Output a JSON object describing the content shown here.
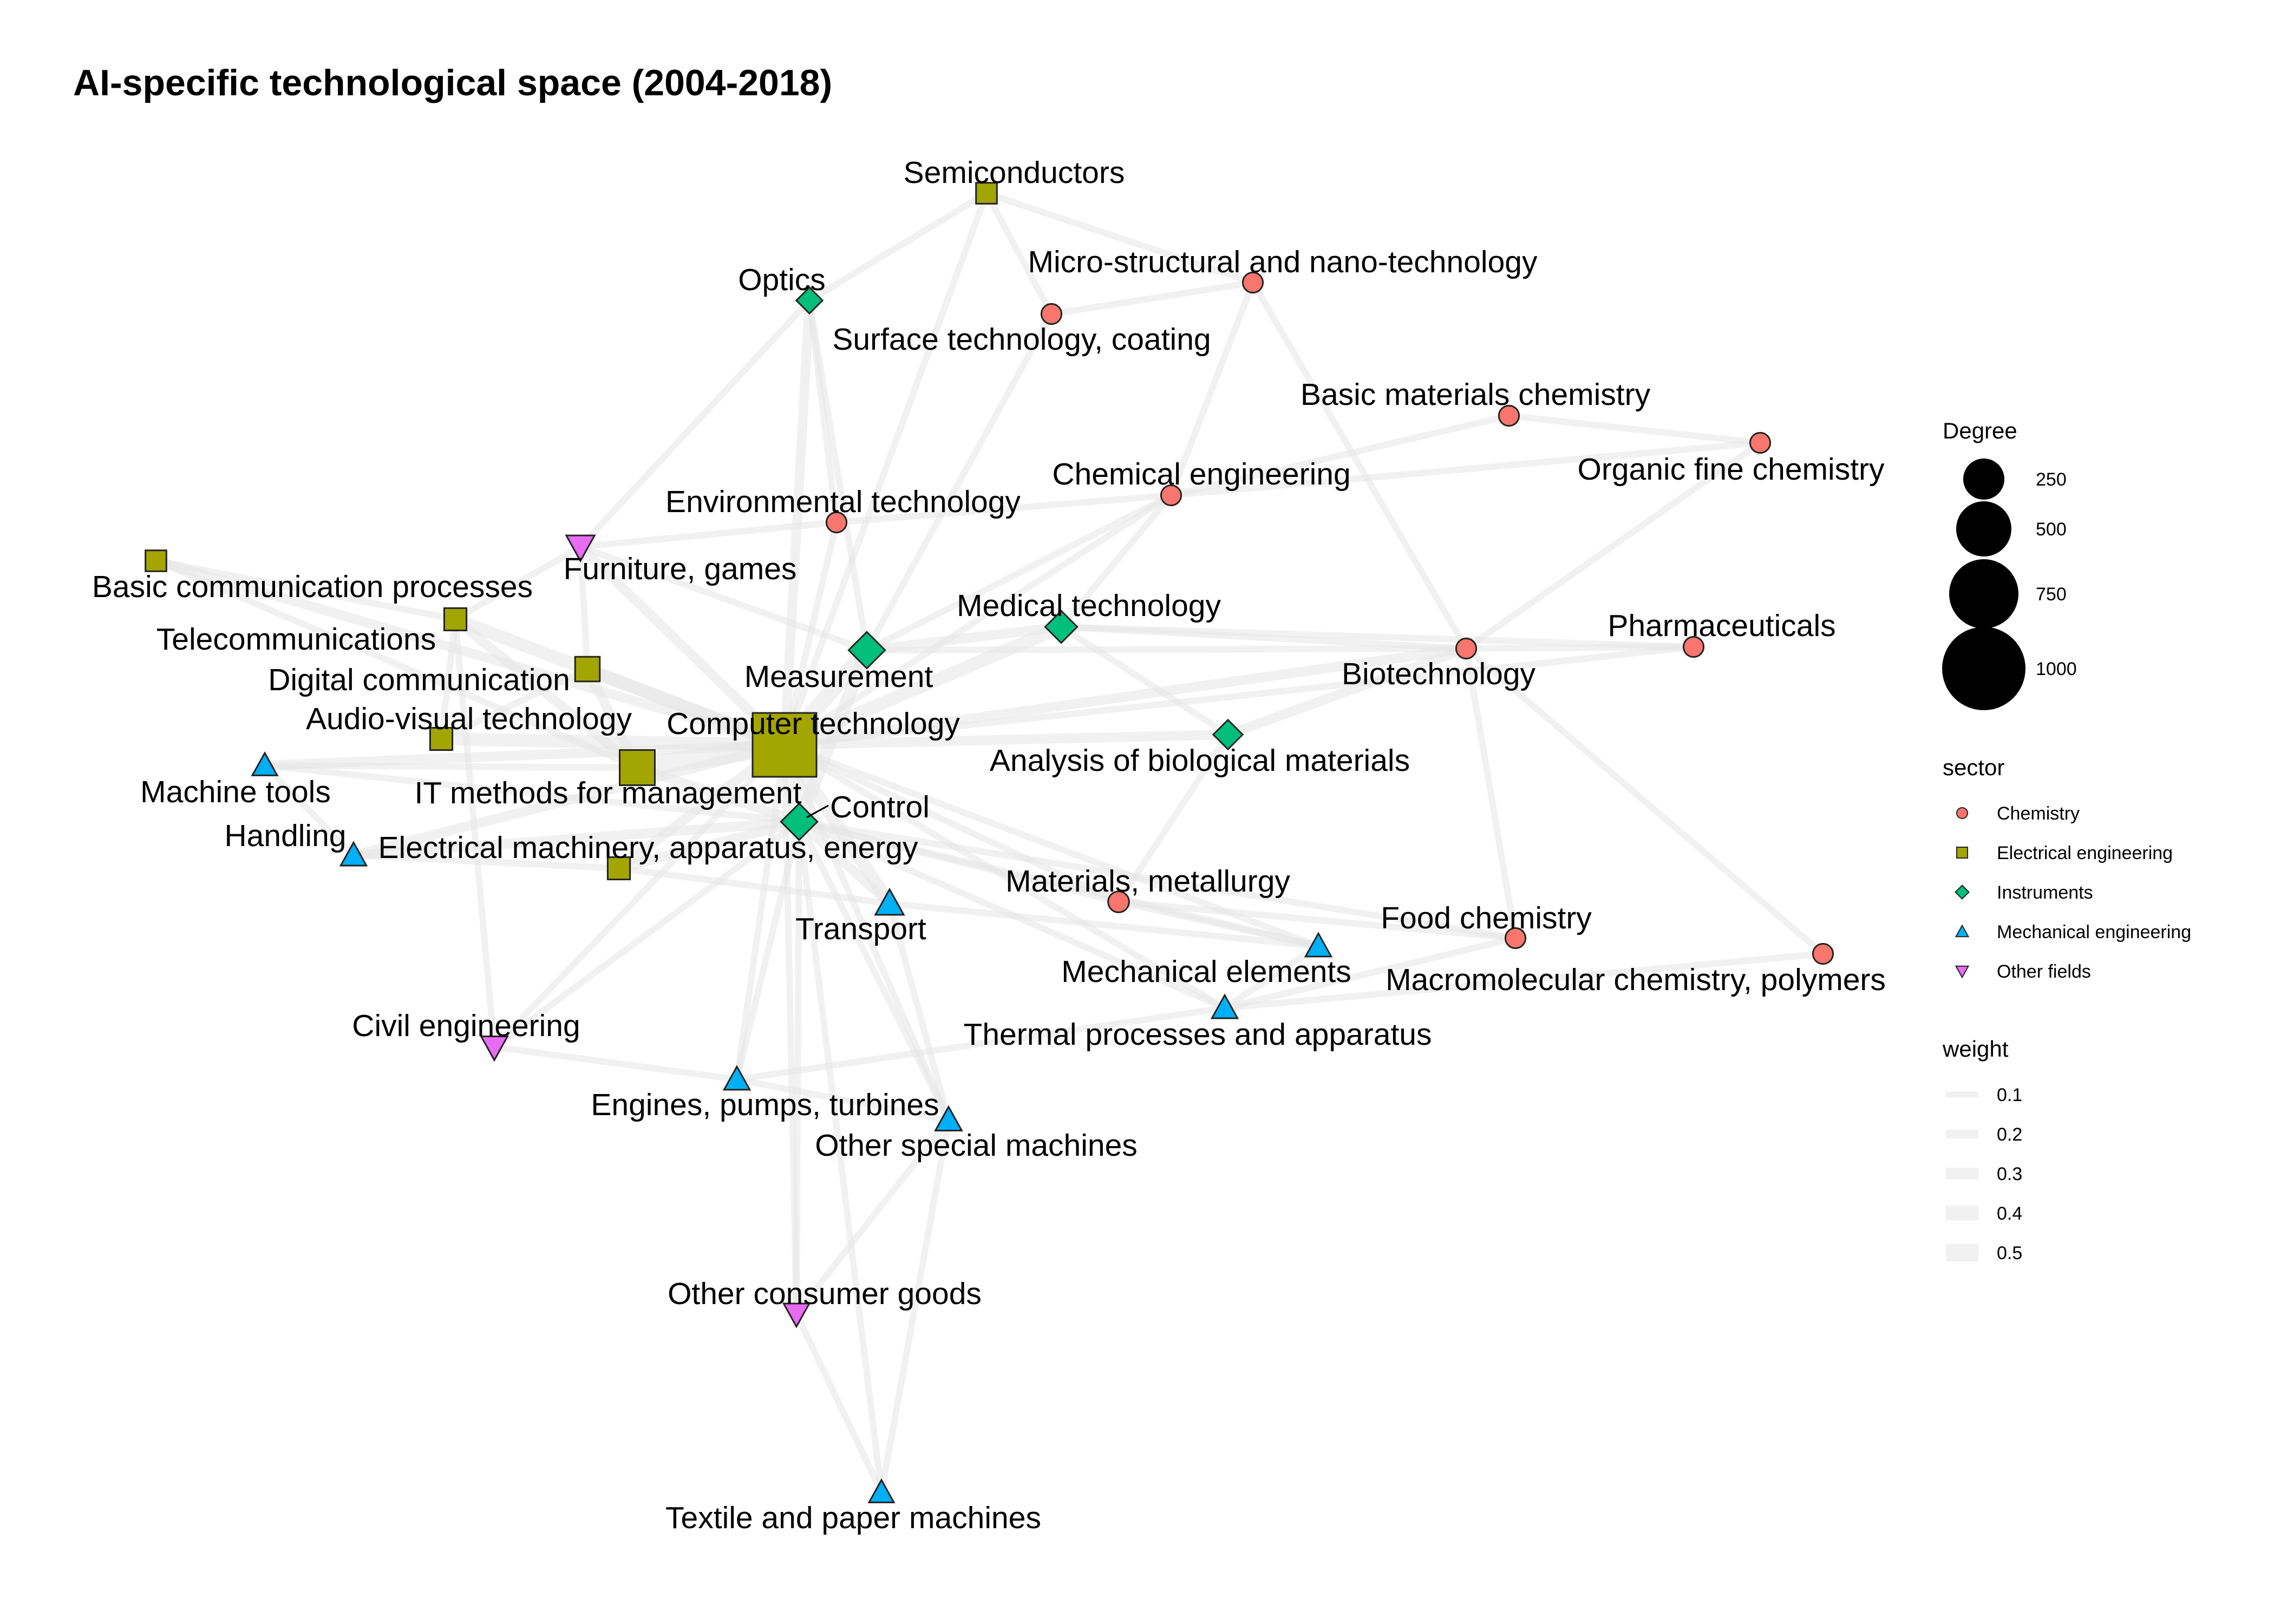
{
  "title": "AI-specific technological space (2004-2018)",
  "sector_colors": {
    "Chemistry": "#F8766D",
    "Electrical engineering": "#A3A500",
    "Instruments": "#00BF7D",
    "Mechanical engineering": "#00B0F6",
    "Other fields": "#E76BF3"
  },
  "sector_shapes": {
    "Chemistry": "circle",
    "Electrical engineering": "square",
    "Instruments": "diamond",
    "Mechanical engineering": "triangle-up",
    "Other fields": "triangle-down"
  },
  "edge_color": "#e6e6e6",
  "nodes": [
    {
      "id": "semiconductors",
      "label": "Semiconductors",
      "sector": "Electrical engineering",
      "degree": 30
    },
    {
      "id": "optics",
      "label": "Optics",
      "sector": "Instruments",
      "degree": 30
    },
    {
      "id": "micro_nano",
      "label": "Micro-structural and nano-technology",
      "sector": "Chemistry",
      "degree": 25
    },
    {
      "id": "surface",
      "label": "Surface technology, coating",
      "sector": "Chemistry",
      "degree": 25
    },
    {
      "id": "basic_materials",
      "label": "Basic materials chemistry",
      "sector": "Chemistry",
      "degree": 25
    },
    {
      "id": "organic_fine",
      "label": "Organic fine chemistry",
      "sector": "Chemistry",
      "degree": 25
    },
    {
      "id": "chemical_eng",
      "label": "Chemical engineering",
      "sector": "Chemistry",
      "degree": 25
    },
    {
      "id": "environmental",
      "label": "Environmental technology",
      "sector": "Chemistry",
      "degree": 25
    },
    {
      "id": "basic_comm",
      "label": "Basic communication processes",
      "sector": "Electrical engineering",
      "degree": 30
    },
    {
      "id": "furniture",
      "label": "Furniture, games",
      "sector": "Other fields",
      "degree": 60
    },
    {
      "id": "telecom",
      "label": "Telecommunications",
      "sector": "Electrical engineering",
      "degree": 40
    },
    {
      "id": "digital_comm",
      "label": "Digital communication",
      "sector": "Electrical engineering",
      "degree": 60
    },
    {
      "id": "medical",
      "label": "Medical technology",
      "sector": "Instruments",
      "degree": 70
    },
    {
      "id": "measurement",
      "label": "Measurement",
      "sector": "Instruments",
      "degree": 110
    },
    {
      "id": "pharma",
      "label": "Pharmaceuticals",
      "sector": "Chemistry",
      "degree": 25
    },
    {
      "id": "biotech",
      "label": "Biotechnology",
      "sector": "Chemistry",
      "degree": 25
    },
    {
      "id": "audio_visual",
      "label": "Audio-visual technology",
      "sector": "Electrical engineering",
      "degree": 40
    },
    {
      "id": "computer",
      "label": "Computer technology",
      "sector": "Electrical engineering",
      "degree": 1000
    },
    {
      "id": "analysis_bio",
      "label": "Analysis of biological materials",
      "sector": "Instruments",
      "degree": 50
    },
    {
      "id": "machine_tools",
      "label": "Machine tools",
      "sector": "Mechanical engineering",
      "degree": 35
    },
    {
      "id": "it_management",
      "label": "IT methods for management",
      "sector": "Electrical engineering",
      "degree": 200
    },
    {
      "id": "control",
      "label": "Control",
      "sector": "Instruments",
      "degree": 110
    },
    {
      "id": "handling",
      "label": "Handling",
      "sector": "Mechanical engineering",
      "degree": 40
    },
    {
      "id": "electrical_machinery",
      "label": "Electrical machinery, apparatus, energy",
      "sector": "Electrical engineering",
      "degree": 40
    },
    {
      "id": "transport",
      "label": "Transport",
      "sector": "Mechanical engineering",
      "degree": 60
    },
    {
      "id": "materials_metallurgy",
      "label": "Materials, metallurgy",
      "sector": "Chemistry",
      "degree": 30
    },
    {
      "id": "food_chem",
      "label": "Food chemistry",
      "sector": "Chemistry",
      "degree": 25
    },
    {
      "id": "mech_elements",
      "label": "Mechanical elements",
      "sector": "Mechanical engineering",
      "degree": 40
    },
    {
      "id": "macromolecular",
      "label": "Macromolecular chemistry, polymers",
      "sector": "Chemistry",
      "degree": 25
    },
    {
      "id": "thermal",
      "label": "Thermal processes and apparatus",
      "sector": "Mechanical engineering",
      "degree": 40
    },
    {
      "id": "civil_eng",
      "label": "Civil engineering",
      "sector": "Other fields",
      "degree": 45
    },
    {
      "id": "engines",
      "label": "Engines, pumps, turbines",
      "sector": "Mechanical engineering",
      "degree": 40
    },
    {
      "id": "other_special",
      "label": "Other special machines",
      "sector": "Mechanical engineering",
      "degree": 45
    },
    {
      "id": "other_consumer",
      "label": "Other consumer goods",
      "sector": "Other fields",
      "degree": 40
    },
    {
      "id": "textile_paper",
      "label": "Textile and paper machines",
      "sector": "Mechanical engineering",
      "degree": 35
    }
  ],
  "edges": [
    [
      "computer",
      "it_management",
      0.5
    ],
    [
      "computer",
      "measurement",
      0.4
    ],
    [
      "computer",
      "control",
      0.4
    ],
    [
      "computer",
      "digital_comm",
      0.3
    ],
    [
      "computer",
      "telecom",
      0.3
    ],
    [
      "computer",
      "audio_visual",
      0.3
    ],
    [
      "computer",
      "basic_comm",
      0.2
    ],
    [
      "computer",
      "furniture",
      0.2
    ],
    [
      "computer",
      "medical",
      0.3
    ],
    [
      "computer",
      "electrical_machinery",
      0.2
    ],
    [
      "computer",
      "handling",
      0.2
    ],
    [
      "computer",
      "machine_tools",
      0.2
    ],
    [
      "computer",
      "transport",
      0.3
    ],
    [
      "computer",
      "analysis_bio",
      0.2
    ],
    [
      "computer",
      "biotech",
      0.2
    ],
    [
      "computer",
      "environmental",
      0.1
    ],
    [
      "computer",
      "optics",
      0.2
    ],
    [
      "computer",
      "semiconductors",
      0.1
    ],
    [
      "computer",
      "engines",
      0.1
    ],
    [
      "computer",
      "civil_eng",
      0.1
    ],
    [
      "computer",
      "other_special",
      0.1
    ],
    [
      "computer",
      "other_consumer",
      0.1
    ],
    [
      "computer",
      "mech_elements",
      0.1
    ],
    [
      "computer",
      "materials_metallurgy",
      0.1
    ],
    [
      "computer",
      "thermal",
      0.1
    ],
    [
      "computer",
      "chemical_eng",
      0.1
    ],
    [
      "computer",
      "pharma",
      0.1
    ],
    [
      "it_management",
      "telecom",
      0.2
    ],
    [
      "it_management",
      "digital_comm",
      0.2
    ],
    [
      "it_management",
      "control",
      0.2
    ],
    [
      "it_management",
      "machine_tools",
      0.1
    ],
    [
      "it_management",
      "basic_comm",
      0.1
    ],
    [
      "measurement",
      "control",
      0.3
    ],
    [
      "measurement",
      "medical",
      0.2
    ],
    [
      "measurement",
      "chemical_eng",
      0.1
    ],
    [
      "measurement",
      "biotech",
      0.1
    ],
    [
      "measurement",
      "optics",
      0.1
    ],
    [
      "measurement",
      "surface",
      0.1
    ],
    [
      "measurement",
      "furniture",
      0.1
    ],
    [
      "control",
      "transport",
      0.2
    ],
    [
      "control",
      "handling",
      0.2
    ],
    [
      "control",
      "electrical_machinery",
      0.2
    ],
    [
      "control",
      "mech_elements",
      0.1
    ],
    [
      "control",
      "engines",
      0.1
    ],
    [
      "control",
      "thermal",
      0.1
    ],
    [
      "control",
      "civil_eng",
      0.1
    ],
    [
      "control",
      "other_special",
      0.1
    ],
    [
      "control",
      "textile_paper",
      0.1
    ],
    [
      "control",
      "other_consumer",
      0.1
    ],
    [
      "control",
      "materials_metallurgy",
      0.1
    ],
    [
      "control",
      "food_chem",
      0.1
    ],
    [
      "control",
      "machine_tools",
      0.1
    ],
    [
      "semiconductors",
      "optics",
      0.1
    ],
    [
      "semiconductors",
      "micro_nano",
      0.1
    ],
    [
      "semiconductors",
      "surface",
      0.1
    ],
    [
      "optics",
      "environmental",
      0.1
    ],
    [
      "micro_nano",
      "surface",
      0.1
    ],
    [
      "micro_nano",
      "chemical_eng",
      0.1
    ],
    [
      "micro_nano",
      "biotech",
      0.1
    ],
    [
      "basic_materials",
      "organic_fine",
      0.1
    ],
    [
      "basic_materials",
      "chemical_eng",
      0.1
    ],
    [
      "organic_fine",
      "chemical_eng",
      0.1
    ],
    [
      "organic_fine",
      "biotech",
      0.1
    ],
    [
      "chemical_eng",
      "environmental",
      0.1
    ],
    [
      "chemical_eng",
      "medical",
      0.1
    ],
    [
      "medical",
      "biotech",
      0.1
    ],
    [
      "medical",
      "analysis_bio",
      0.1
    ],
    [
      "medical",
      "pharma",
      0.1
    ],
    [
      "biotech",
      "pharma",
      0.1
    ],
    [
      "biotech",
      "analysis_bio",
      0.2
    ],
    [
      "biotech",
      "food_chem",
      0.1
    ],
    [
      "biotech",
      "macromolecular",
      0.1
    ],
    [
      "analysis_bio",
      "materials_metallurgy",
      0.1
    ],
    [
      "materials_metallurgy",
      "mech_elements",
      0.1
    ],
    [
      "materials_metallurgy",
      "food_chem",
      0.1
    ],
    [
      "transport",
      "mech_elements",
      0.1
    ],
    [
      "transport",
      "other_special",
      0.1
    ],
    [
      "mech_elements",
      "thermal",
      0.1
    ],
    [
      "thermal",
      "food_chem",
      0.1
    ],
    [
      "thermal",
      "engines",
      0.1
    ],
    [
      "thermal",
      "macromolecular",
      0.1
    ],
    [
      "civil_eng",
      "engines",
      0.1
    ],
    [
      "civil_eng",
      "telecom",
      0.1
    ],
    [
      "engines",
      "other_special",
      0.1
    ],
    [
      "other_special",
      "other_consumer",
      0.1
    ],
    [
      "other_consumer",
      "textile_paper",
      0.1
    ],
    [
      "other_special",
      "textile_paper",
      0.1
    ],
    [
      "handling",
      "machine_tools",
      0.1
    ],
    [
      "handling",
      "electrical_machinery",
      0.1
    ],
    [
      "audio_visual",
      "digital_comm",
      0.1
    ],
    [
      "audio_visual",
      "telecom",
      0.1
    ],
    [
      "telecom",
      "basic_comm",
      0.1
    ],
    [
      "furniture",
      "telecom",
      0.1
    ],
    [
      "furniture",
      "digital_comm",
      0.1
    ],
    [
      "electrical_machinery",
      "transport",
      0.1
    ],
    [
      "optics",
      "furniture",
      0.1
    ],
    [
      "environmental",
      "furniture",
      0.1
    ]
  ],
  "legend": {
    "degree": {
      "title": "Degree",
      "values": [
        250,
        500,
        750,
        1000
      ]
    },
    "sector": {
      "title": "sector",
      "items": [
        "Chemistry",
        "Electrical engineering",
        "Instruments",
        "Mechanical engineering",
        "Other fields"
      ]
    },
    "weight": {
      "title": "weight",
      "values": [
        0.1,
        0.2,
        0.3,
        0.4,
        0.5
      ]
    }
  }
}
